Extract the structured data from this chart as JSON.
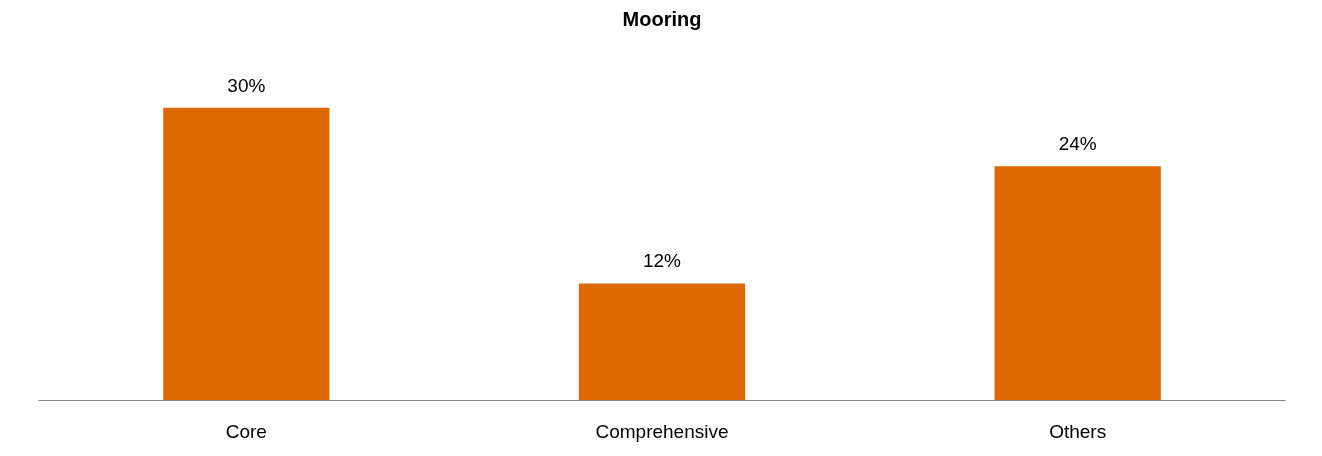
{
  "chart_data": {
    "type": "bar",
    "title": "Mooring",
    "categories": [
      "Core",
      "Comprehensive",
      "Others"
    ],
    "values": [
      30,
      12,
      24
    ],
    "value_labels": [
      "30%",
      "12%",
      "24%"
    ],
    "color": "#dd6900",
    "grid": false
  }
}
